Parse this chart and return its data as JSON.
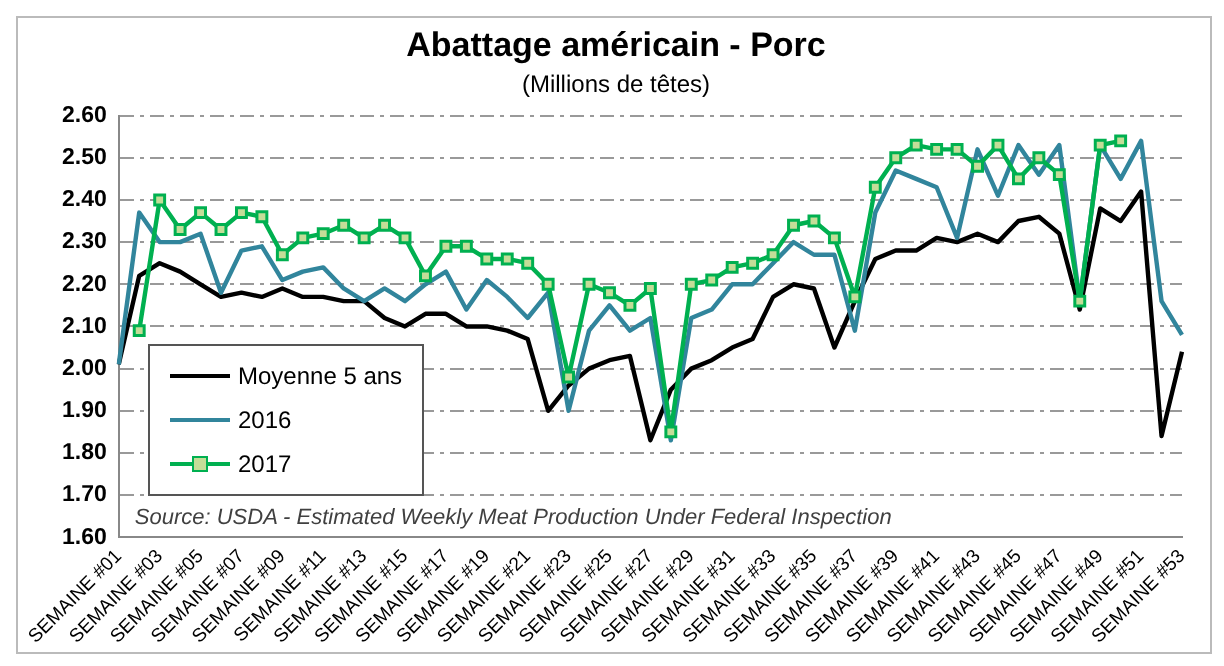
{
  "chart_data": {
    "type": "line",
    "title": "Abattage américain - Porc",
    "subtitle": "(Millions de têtes)",
    "categories": [
      "SEMAINE #01",
      null,
      "SEMAINE #03",
      null,
      "SEMAINE #05",
      null,
      "SEMAINE #07",
      null,
      "SEMAINE #09",
      null,
      "SEMAINE #11",
      null,
      "SEMAINE #13",
      null,
      "SEMAINE #15",
      null,
      "SEMAINE #17",
      null,
      "SEMAINE #19",
      null,
      "SEMAINE #21",
      null,
      "SEMAINE #23",
      null,
      "SEMAINE #25",
      null,
      "SEMAINE #27",
      null,
      "SEMAINE #29",
      null,
      "SEMAINE #31",
      null,
      "SEMAINE #33",
      null,
      "SEMAINE #35",
      null,
      "SEMAINE #37",
      null,
      "SEMAINE #39",
      null,
      "SEMAINE #41",
      null,
      "SEMAINE #43",
      null,
      "SEMAINE #45",
      null,
      "SEMAINE #47",
      null,
      "SEMAINE #49",
      null,
      "SEMAINE #51",
      null,
      "SEMAINE #53"
    ],
    "series": [
      {
        "name": "Moyenne 5 ans",
        "color": "#000000",
        "marker": "none",
        "values": [
          2.01,
          2.22,
          2.25,
          2.23,
          2.2,
          2.17,
          2.18,
          2.17,
          2.19,
          2.17,
          2.17,
          2.16,
          2.16,
          2.12,
          2.1,
          2.13,
          2.13,
          2.1,
          2.1,
          2.09,
          2.07,
          1.9,
          1.96,
          2.0,
          2.02,
          2.03,
          1.83,
          1.95,
          2.0,
          2.02,
          2.05,
          2.07,
          2.17,
          2.2,
          2.19,
          2.05,
          2.16,
          2.26,
          2.28,
          2.28,
          2.31,
          2.3,
          2.32,
          2.3,
          2.35,
          2.36,
          2.32,
          2.14,
          2.38,
          2.35,
          2.42,
          1.84,
          2.04
        ]
      },
      {
        "name": "2016",
        "color": "#31859c",
        "marker": "none",
        "values": [
          2.01,
          2.37,
          2.3,
          2.3,
          2.32,
          2.18,
          2.28,
          2.29,
          2.21,
          2.23,
          2.24,
          2.19,
          2.16,
          2.19,
          2.16,
          2.2,
          2.23,
          2.14,
          2.21,
          2.17,
          2.12,
          2.18,
          1.9,
          2.09,
          2.15,
          2.09,
          2.12,
          1.83,
          2.12,
          2.14,
          2.2,
          2.2,
          2.25,
          2.3,
          2.27,
          2.27,
          2.09,
          2.37,
          2.47,
          2.45,
          2.43,
          2.31,
          2.52,
          2.41,
          2.53,
          2.46,
          2.53,
          2.16,
          2.53,
          2.45,
          2.54,
          2.16,
          2.08
        ]
      },
      {
        "name": "2017",
        "color": "#00b050",
        "marker": "square",
        "values": [
          null,
          2.09,
          2.4,
          2.33,
          2.37,
          2.33,
          2.37,
          2.36,
          2.27,
          2.31,
          2.32,
          2.34,
          2.31,
          2.34,
          2.31,
          2.22,
          2.29,
          2.29,
          2.26,
          2.26,
          2.25,
          2.2,
          1.98,
          2.2,
          2.18,
          2.15,
          2.19,
          1.85,
          2.2,
          2.21,
          2.24,
          2.25,
          2.27,
          2.34,
          2.35,
          2.31,
          2.17,
          2.43,
          2.5,
          2.53,
          2.52,
          2.52,
          2.48,
          2.53,
          2.45,
          2.5,
          2.46,
          2.16,
          2.53,
          2.54,
          null,
          null,
          null
        ]
      }
    ],
    "ylim": [
      1.6,
      2.6
    ],
    "yticks": [
      {
        "value": 1.6,
        "label": "1.60"
      },
      {
        "value": 1.7,
        "label": "1.70"
      },
      {
        "value": 1.8,
        "label": "1.80"
      },
      {
        "value": 1.9,
        "label": "1.90"
      },
      {
        "value": 2.0,
        "label": "2.00"
      },
      {
        "value": 2.1,
        "label": "2.10"
      },
      {
        "value": 2.2,
        "label": "2.20"
      },
      {
        "value": 2.3,
        "label": "2.30"
      },
      {
        "value": 2.4,
        "label": "2.40"
      },
      {
        "value": 2.5,
        "label": "2.50"
      },
      {
        "value": 2.6,
        "label": "2.60"
      }
    ],
    "grid": "y",
    "legend": "bottom left",
    "annotations": [
      "Source: USDA - Estimated Weekly Meat Production Under Federal Inspection"
    ]
  }
}
